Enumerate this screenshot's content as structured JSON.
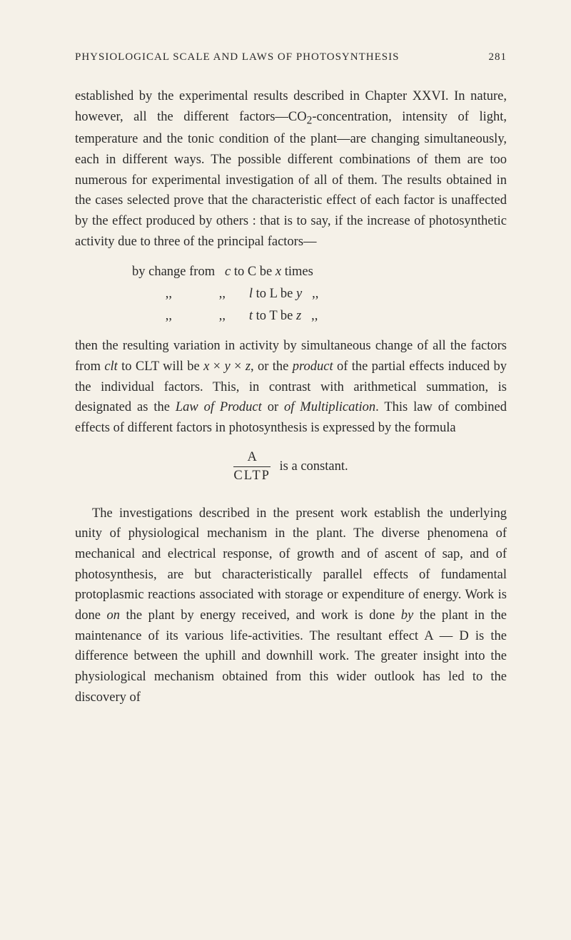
{
  "header": {
    "title": "PHYSIOLOGICAL SCALE AND LAWS OF PHOTOSYNTHESIS",
    "page": "281"
  },
  "para1_parts": {
    "t1": "established by the experimental results described in Chapter XXVI. In nature, however, all the different factors—CO",
    "sub": "2",
    "t2": "-concentration, intensity of light, temperature and the tonic condition of the plant—are changing simultaneously, each in different ways. The possible different combinations of them are too numerous for experimental investigation of all of them. The results obtained in the cases selected prove that the characteristic effect of each factor is unaffected by the effect produced by others : that is to say, if the increase of photosynthetic activity due to three of the principal factors—"
  },
  "changes": {
    "line1_a": "by change from",
    "line1_b": "c",
    "line1_c": " to C be ",
    "line1_d": "x",
    "line1_e": " times",
    "line2_a": ",,",
    "line2_b": ",,",
    "line2_c": "l",
    "line2_d": " to L be ",
    "line2_e": "y",
    "line2_f": ",,",
    "line3_a": ",,",
    "line3_b": ",,",
    "line3_c": "t",
    "line3_d": " to T be ",
    "line3_e": "z",
    "line3_f": ",,"
  },
  "para2_parts": {
    "t1": "then the resulting variation in activity by simultaneous change of all the factors from ",
    "i1": "clt",
    "t2": " to CLT will be ",
    "i2": "x",
    "t3": " × ",
    "i3": "y",
    "t4": " × ",
    "i4": "z",
    "t5": ", or the ",
    "i5": "product",
    "t6": " of the partial effects induced by the individual factors. This, in contrast with arithmetical summation, is designated as the ",
    "i6": "Law of Product",
    "t7": " or ",
    "i7": "of Multiplication",
    "t8": ". This law of combined effects of different factors in photosynthesis is expressed by the formula"
  },
  "formula": {
    "num": "A",
    "den": "CLTP",
    "rest": " is a constant."
  },
  "para3_parts": {
    "t1": "The investigations described in the present work establish the underlying unity of physiological mechanism in the plant. The diverse phenomena of mechanical and electrical response, of growth and of ascent of sap, and of photosynthesis, are but characteristically parallel effects of fundamental protoplasmic reactions associated with storage or expenditure of energy. Work is done ",
    "i1": "on",
    "t2": " the plant by energy received, and work is done ",
    "i2": "by",
    "t3": " the plant in the maintenance of its various life-activities. The resultant effect A — D is the difference between the uphill and downhill work. The greater insight into the physiological mechanism obtained from this wider outlook has led to the discovery of"
  }
}
